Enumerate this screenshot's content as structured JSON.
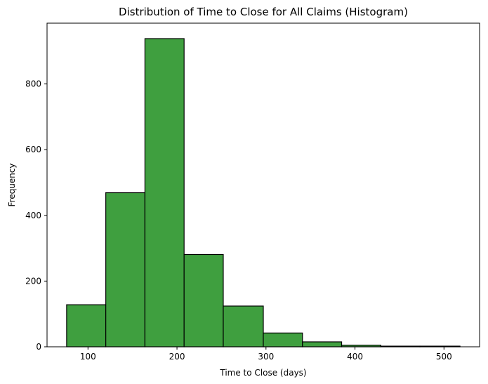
{
  "chart_data": {
    "type": "bar",
    "title": "Distribution of Time to Close for All Claims (Histogram)",
    "xlabel": "Time to Close (days)",
    "ylabel": "Frequency",
    "bins": [
      {
        "start": 76,
        "end": 120,
        "count": 128
      },
      {
        "start": 120,
        "end": 164,
        "count": 469
      },
      {
        "start": 164,
        "end": 208,
        "count": 938
      },
      {
        "start": 208,
        "end": 252,
        "count": 281
      },
      {
        "start": 252,
        "end": 297,
        "count": 124
      },
      {
        "start": 297,
        "end": 341,
        "count": 42
      },
      {
        "start": 341,
        "end": 385,
        "count": 15
      },
      {
        "start": 385,
        "end": 429,
        "count": 5
      },
      {
        "start": 429,
        "end": 473,
        "count": 2
      },
      {
        "start": 473,
        "end": 518,
        "count": 2
      }
    ],
    "xlim": [
      54,
      540
    ],
    "ylim": [
      0,
      985
    ],
    "xticks": [
      100,
      200,
      300,
      400,
      500
    ],
    "yticks": [
      0,
      200,
      400,
      600,
      800
    ],
    "bar_color": "#3f9f3f",
    "edge_color": "#000000",
    "grid": false
  }
}
